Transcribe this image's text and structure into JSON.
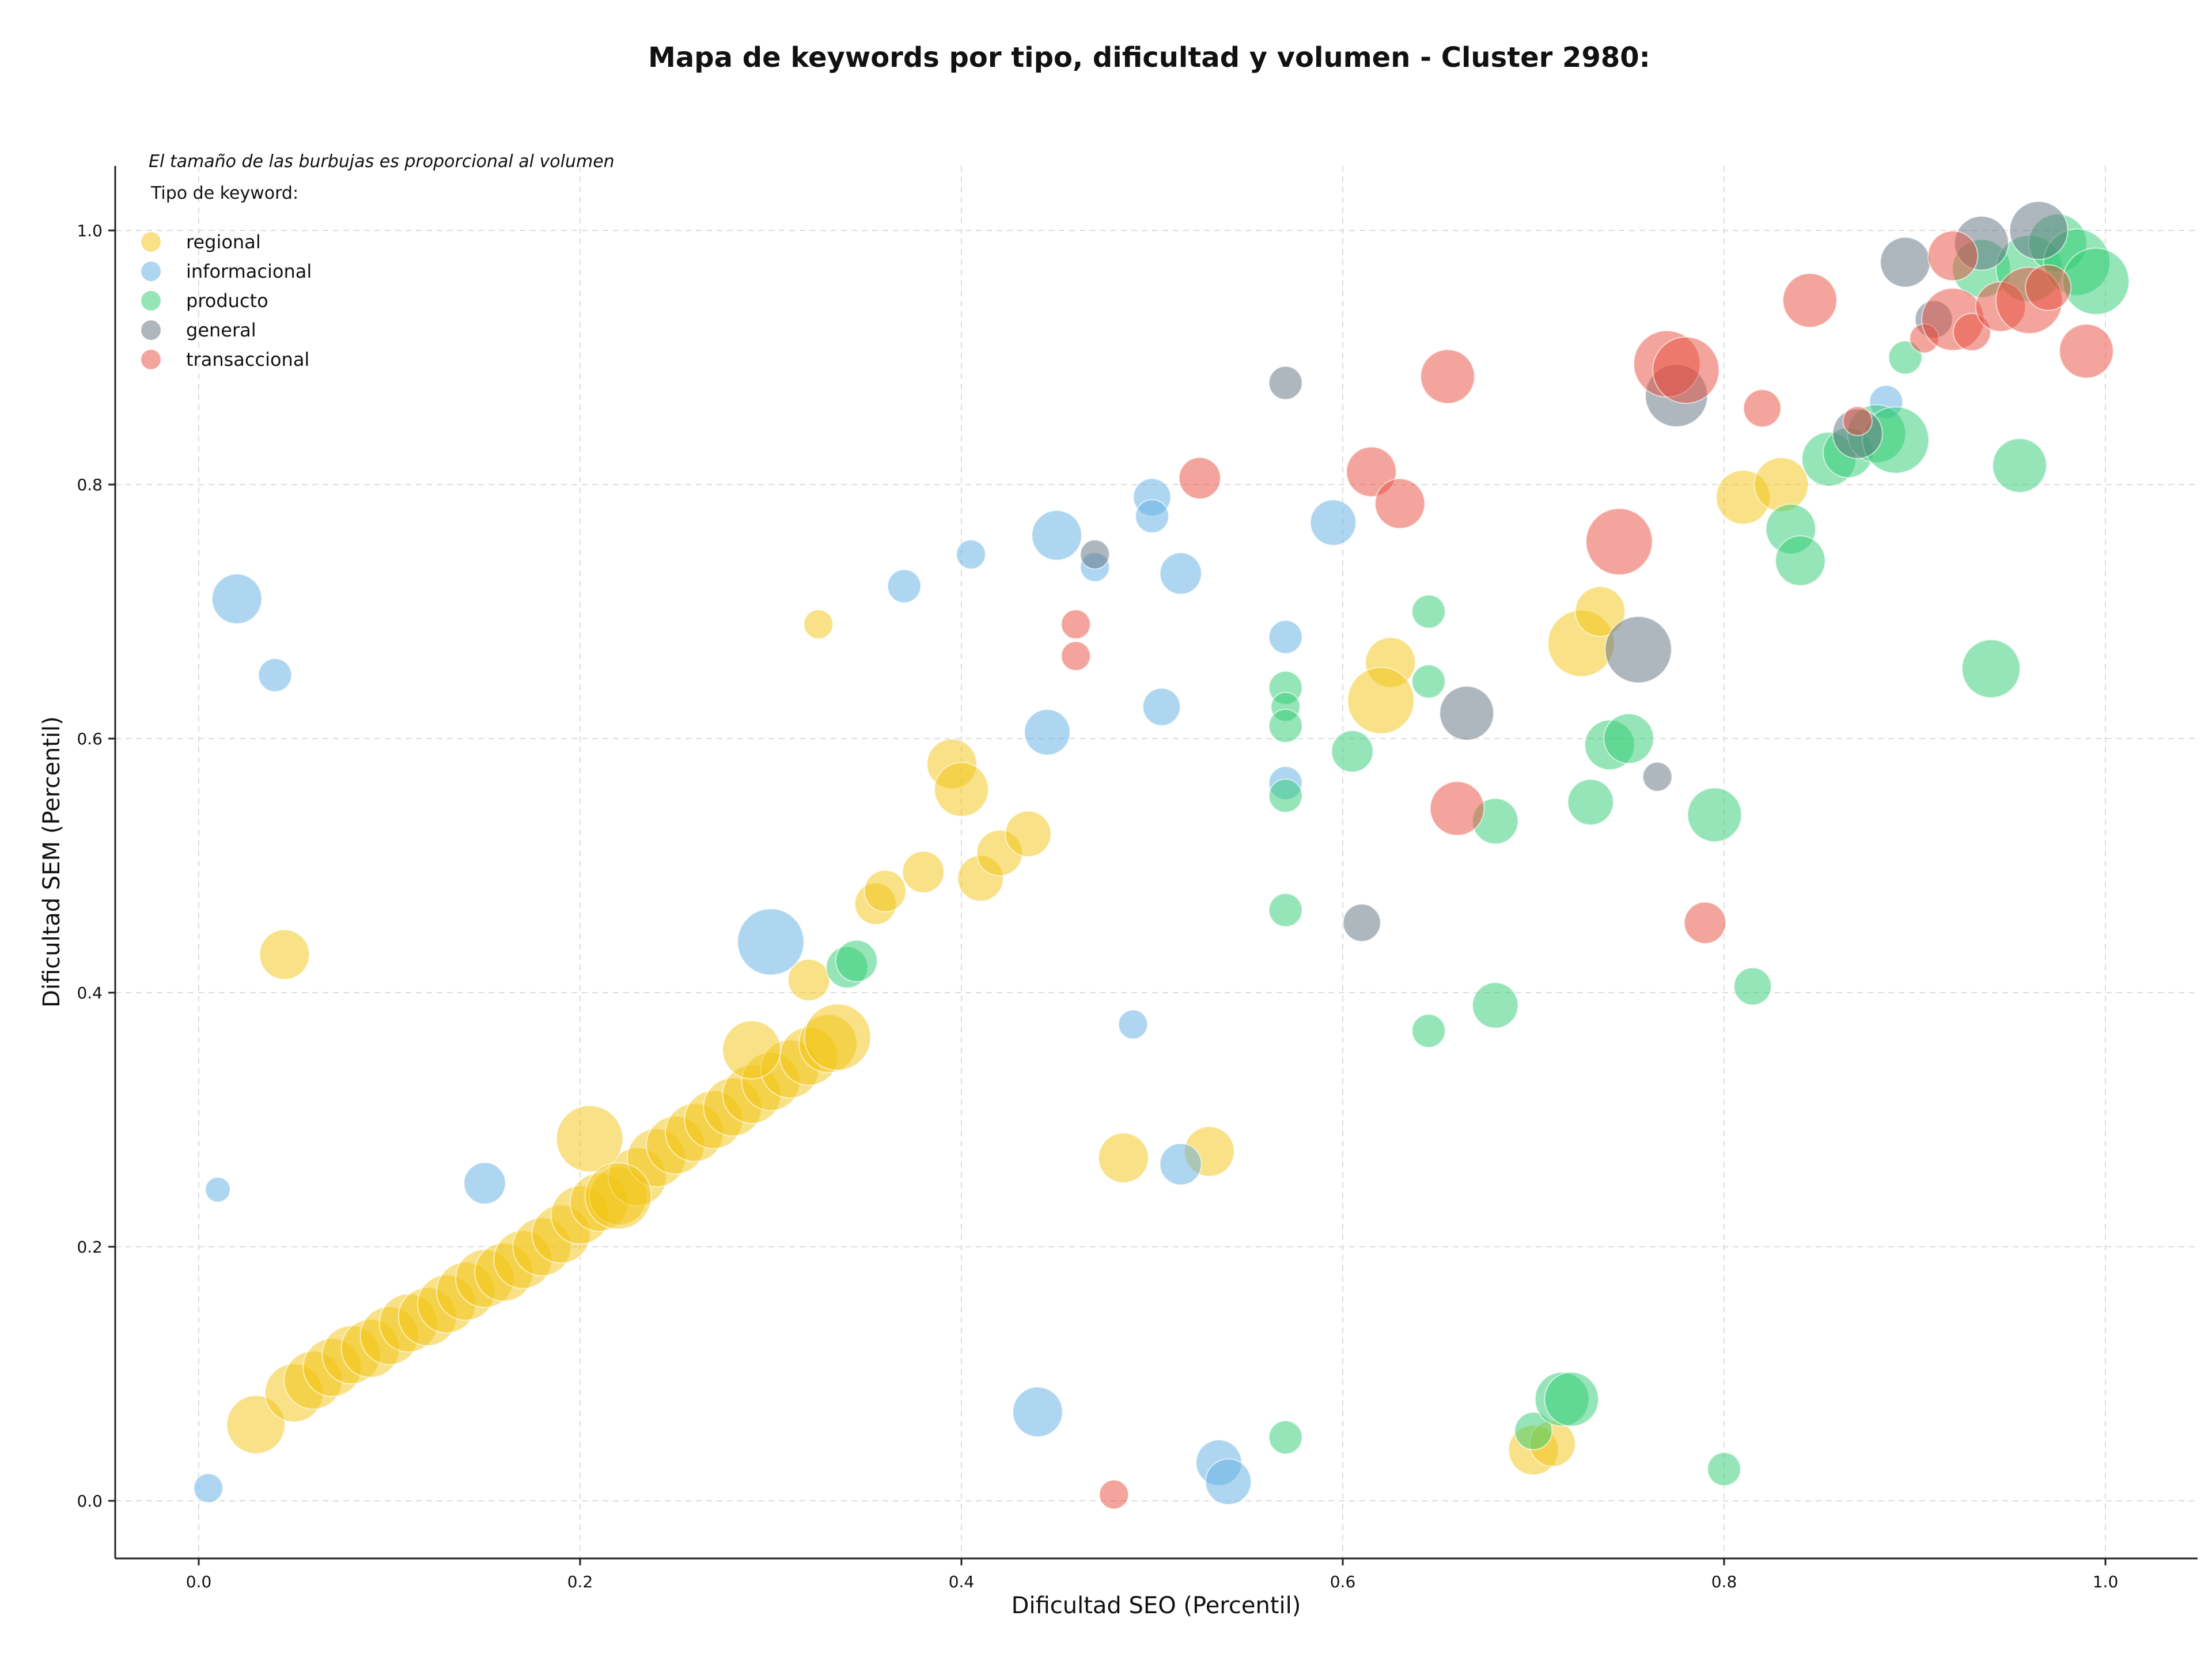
{
  "chart_data": {
    "type": "scatter",
    "title": "Mapa de keywords por tipo, dificultad y volumen - Cluster 2980:",
    "xlabel": "Dificultad SEO (Percentil)",
    "ylabel": "Dificultad SEM (Percentil)",
    "xlim": [
      -0.045,
      1.05
    ],
    "ylim": [
      -0.045,
      1.05
    ],
    "xticks": [
      "0.0",
      "0.2",
      "0.4",
      "0.6",
      "0.8",
      "1.0"
    ],
    "yticks": [
      "0.0",
      "0.2",
      "0.4",
      "0.6",
      "0.8",
      "1.0"
    ],
    "grid": true,
    "note": "El tamaño de las burbujas es proporcional al volumen",
    "legend_title": "Tipo de keyword:",
    "legend_position": "top-left",
    "series": [
      {
        "name": "regional",
        "color": "#f1c40f",
        "points": [
          [
            0.03,
            0.06,
            14
          ],
          [
            0.05,
            0.085,
            14
          ],
          [
            0.06,
            0.095,
            14
          ],
          [
            0.07,
            0.105,
            14
          ],
          [
            0.08,
            0.115,
            14
          ],
          [
            0.09,
            0.12,
            14
          ],
          [
            0.1,
            0.13,
            14
          ],
          [
            0.11,
            0.14,
            14
          ],
          [
            0.12,
            0.145,
            14
          ],
          [
            0.13,
            0.155,
            14
          ],
          [
            0.14,
            0.165,
            14
          ],
          [
            0.15,
            0.175,
            14
          ],
          [
            0.16,
            0.18,
            14
          ],
          [
            0.17,
            0.19,
            14
          ],
          [
            0.18,
            0.2,
            14
          ],
          [
            0.19,
            0.21,
            14
          ],
          [
            0.2,
            0.225,
            14
          ],
          [
            0.21,
            0.235,
            14
          ],
          [
            0.22,
            0.24,
            14
          ],
          [
            0.23,
            0.255,
            14
          ],
          [
            0.24,
            0.27,
            14
          ],
          [
            0.25,
            0.28,
            14
          ],
          [
            0.26,
            0.29,
            14
          ],
          [
            0.27,
            0.3,
            14
          ],
          [
            0.28,
            0.31,
            14
          ],
          [
            0.29,
            0.32,
            14
          ],
          [
            0.3,
            0.33,
            14
          ],
          [
            0.31,
            0.34,
            14
          ],
          [
            0.32,
            0.35,
            14
          ],
          [
            0.33,
            0.36,
            14
          ],
          [
            0.205,
            0.285,
            16
          ],
          [
            0.22,
            0.24,
            16
          ],
          [
            0.29,
            0.355,
            14
          ],
          [
            0.335,
            0.365,
            16
          ],
          [
            0.045,
            0.43,
            12
          ],
          [
            0.395,
            0.58,
            12
          ],
          [
            0.4,
            0.56,
            13
          ],
          [
            0.325,
            0.69,
            7
          ],
          [
            0.32,
            0.41,
            10
          ],
          [
            0.355,
            0.47,
            10
          ],
          [
            0.36,
            0.48,
            10
          ],
          [
            0.38,
            0.495,
            10
          ],
          [
            0.41,
            0.49,
            11
          ],
          [
            0.42,
            0.51,
            11
          ],
          [
            0.435,
            0.525,
            11
          ],
          [
            0.485,
            0.27,
            12
          ],
          [
            0.53,
            0.275,
            12
          ],
          [
            0.625,
            0.66,
            12
          ],
          [
            0.62,
            0.63,
            16
          ],
          [
            0.725,
            0.675,
            16
          ],
          [
            0.735,
            0.7,
            12
          ],
          [
            0.81,
            0.79,
            13
          ],
          [
            0.83,
            0.8,
            13
          ],
          [
            0.7,
            0.04,
            12
          ],
          [
            0.71,
            0.045,
            11
          ]
        ]
      },
      {
        "name": "informacional",
        "color": "#5dade2",
        "points": [
          [
            0.005,
            0.01,
            7
          ],
          [
            0.01,
            0.245,
            6
          ],
          [
            0.02,
            0.71,
            12
          ],
          [
            0.04,
            0.65,
            8
          ],
          [
            0.15,
            0.25,
            10
          ],
          [
            0.3,
            0.44,
            16
          ],
          [
            0.37,
            0.72,
            8
          ],
          [
            0.405,
            0.745,
            7
          ],
          [
            0.445,
            0.605,
            11
          ],
          [
            0.45,
            0.76,
            12
          ],
          [
            0.47,
            0.735,
            7
          ],
          [
            0.49,
            0.375,
            7
          ],
          [
            0.5,
            0.79,
            9
          ],
          [
            0.5,
            0.775,
            8
          ],
          [
            0.505,
            0.625,
            9
          ],
          [
            0.515,
            0.73,
            10
          ],
          [
            0.515,
            0.265,
            10
          ],
          [
            0.57,
            0.68,
            8
          ],
          [
            0.57,
            0.565,
            8
          ],
          [
            0.595,
            0.77,
            11
          ],
          [
            0.44,
            0.07,
            12
          ],
          [
            0.535,
            0.03,
            11
          ],
          [
            0.54,
            0.015,
            11
          ],
          [
            0.885,
            0.865,
            8
          ]
        ]
      },
      {
        "name": "producto",
        "color": "#2ecc71",
        "points": [
          [
            0.34,
            0.42,
            10
          ],
          [
            0.345,
            0.425,
            10
          ],
          [
            0.57,
            0.64,
            8
          ],
          [
            0.57,
            0.625,
            7
          ],
          [
            0.57,
            0.61,
            8
          ],
          [
            0.57,
            0.555,
            8
          ],
          [
            0.57,
            0.465,
            8
          ],
          [
            0.605,
            0.59,
            10
          ],
          [
            0.645,
            0.7,
            8
          ],
          [
            0.645,
            0.645,
            8
          ],
          [
            0.645,
            0.37,
            8
          ],
          [
            0.68,
            0.535,
            11
          ],
          [
            0.68,
            0.39,
            11
          ],
          [
            0.73,
            0.55,
            11
          ],
          [
            0.74,
            0.595,
            12
          ],
          [
            0.75,
            0.6,
            12
          ],
          [
            0.795,
            0.54,
            13
          ],
          [
            0.8,
            0.025,
            8
          ],
          [
            0.815,
            0.405,
            9
          ],
          [
            0.835,
            0.765,
            12
          ],
          [
            0.84,
            0.74,
            12
          ],
          [
            0.855,
            0.82,
            13
          ],
          [
            0.865,
            0.825,
            12
          ],
          [
            0.88,
            0.84,
            14
          ],
          [
            0.89,
            0.835,
            16
          ],
          [
            0.895,
            0.9,
            8
          ],
          [
            0.94,
            0.655,
            14
          ],
          [
            0.955,
            0.815,
            13
          ],
          [
            0.935,
            0.97,
            14
          ],
          [
            0.96,
            0.97,
            16
          ],
          [
            0.975,
            0.99,
            14
          ],
          [
            0.985,
            0.975,
            16
          ],
          [
            0.995,
            0.96,
            16
          ],
          [
            0.57,
            0.05,
            8
          ],
          [
            0.7,
            0.055,
            9
          ],
          [
            0.715,
            0.08,
            13
          ],
          [
            0.72,
            0.08,
            13
          ]
        ]
      },
      {
        "name": "general",
        "color": "#5d6d7e",
        "points": [
          [
            0.47,
            0.745,
            7
          ],
          [
            0.57,
            0.88,
            8
          ],
          [
            0.61,
            0.455,
            9
          ],
          [
            0.665,
            0.62,
            13
          ],
          [
            0.755,
            0.67,
            16
          ],
          [
            0.765,
            0.57,
            7
          ],
          [
            0.775,
            0.87,
            15
          ],
          [
            0.87,
            0.84,
            12
          ],
          [
            0.895,
            0.975,
            12
          ],
          [
            0.91,
            0.93,
            9
          ],
          [
            0.935,
            0.99,
            13
          ],
          [
            0.965,
            1.0,
            14
          ]
        ]
      },
      {
        "name": "transaccional",
        "color": "#e74c3c",
        "points": [
          [
            0.48,
            0.005,
            7
          ],
          [
            0.46,
            0.69,
            7
          ],
          [
            0.46,
            0.665,
            7
          ],
          [
            0.525,
            0.805,
            10
          ],
          [
            0.615,
            0.81,
            12
          ],
          [
            0.63,
            0.785,
            12
          ],
          [
            0.655,
            0.885,
            13
          ],
          [
            0.66,
            0.545,
            13
          ],
          [
            0.745,
            0.755,
            16
          ],
          [
            0.77,
            0.895,
            16
          ],
          [
            0.78,
            0.89,
            16
          ],
          [
            0.79,
            0.455,
            10
          ],
          [
            0.82,
            0.86,
            9
          ],
          [
            0.845,
            0.945,
            13
          ],
          [
            0.87,
            0.85,
            7
          ],
          [
            0.905,
            0.915,
            7
          ],
          [
            0.92,
            0.98,
            12
          ],
          [
            0.92,
            0.93,
            15
          ],
          [
            0.93,
            0.92,
            9
          ],
          [
            0.945,
            0.94,
            12
          ],
          [
            0.96,
            0.945,
            16
          ],
          [
            0.97,
            0.955,
            11
          ],
          [
            0.99,
            0.905,
            13
          ]
        ]
      }
    ]
  }
}
